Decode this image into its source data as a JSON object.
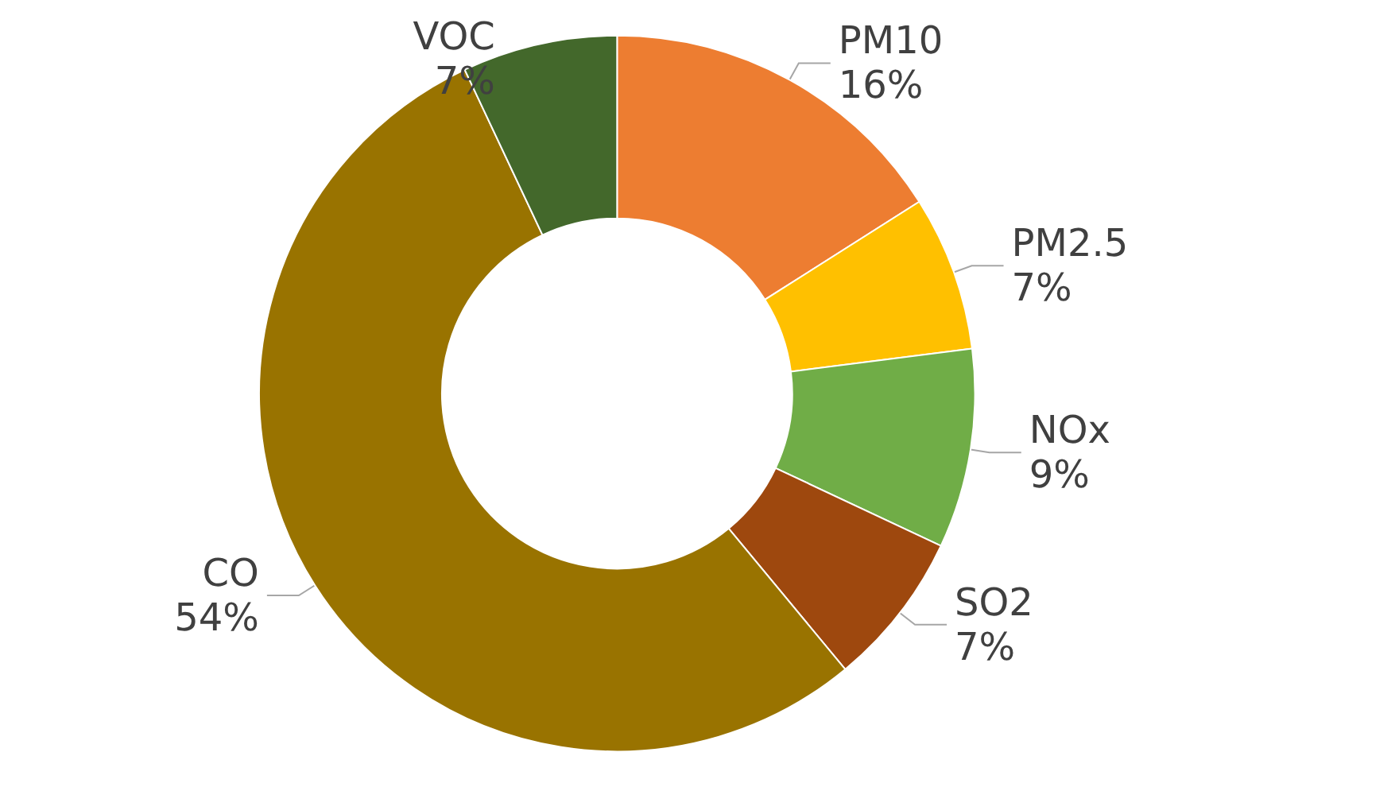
{
  "chart_data": {
    "type": "donut",
    "categories": [
      "PM10",
      "PM2.5",
      "NOx",
      "SO2",
      "CO",
      "VOC"
    ],
    "values": [
      16,
      7,
      9,
      7,
      54,
      7
    ],
    "colors": [
      "#ed7d31",
      "#ffc000",
      "#70ad47",
      "#9e480e",
      "#997300",
      "#43682b"
    ],
    "value_labels": [
      "16%",
      "7%",
      "9%",
      "7%",
      "54%",
      "7%"
    ],
    "legend": false
  }
}
